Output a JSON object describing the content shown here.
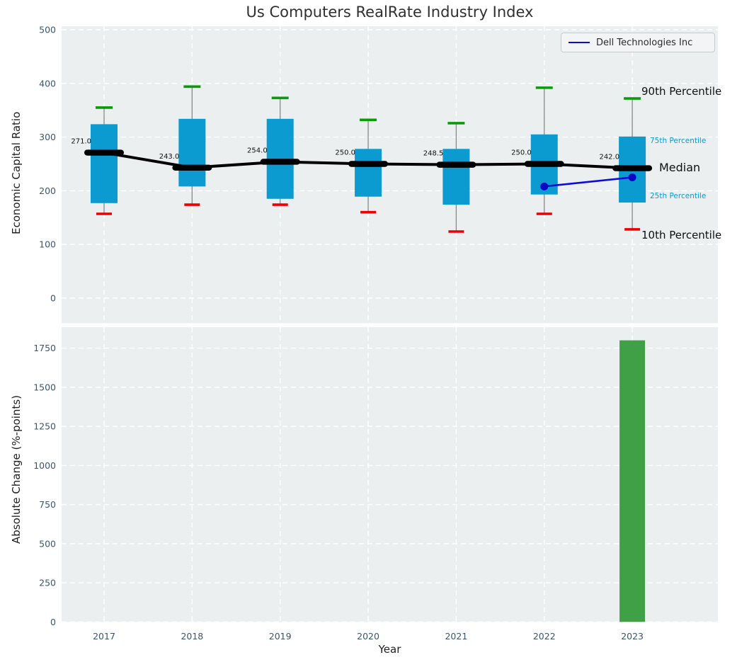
{
  "title": "Us Computers RealRate Industry Index",
  "legend": {
    "label": "Dell Technologies Inc",
    "line_color": "#0b0bdb"
  },
  "annotations": {
    "p90": "90th Percentile",
    "p75": "75th Percentile",
    "median": "Median",
    "p25": "25th Percentile",
    "p10": "10th Percentile"
  },
  "colors": {
    "plot_bg": "#ebeff0",
    "grid": "#ffffff",
    "box_fill": "#0b9bd0",
    "cap_90": "#0a9b0a",
    "cap_10": "#ee0000",
    "whisker": "#888888",
    "median_line": "#000000",
    "dell_line": "#0b0bdb",
    "bar_fill": "#3fa046",
    "tick_label": "#3a556d"
  },
  "chart_data": [
    {
      "type": "box-whisker-timeseries",
      "title": "Us Computers RealRate Industry Index",
      "ylabel": "Economic Capital Ratio",
      "categories": [
        "2017",
        "2018",
        "2019",
        "2020",
        "2021",
        "2022",
        "2023"
      ],
      "ylim": [
        -46,
        507
      ],
      "yticks": [
        0,
        100,
        200,
        300,
        400,
        500
      ],
      "grid": true,
      "legend_position": "upper right",
      "series": [
        {
          "name": "90th Percentile",
          "values": [
            355,
            394,
            373,
            332,
            326,
            392,
            372
          ]
        },
        {
          "name": "75th Percentile",
          "values": [
            324,
            334,
            334,
            278,
            278,
            305,
            301
          ]
        },
        {
          "name": "Median",
          "values": [
            271.0,
            243.0,
            254.0,
            250.0,
            248.5,
            250.0,
            242.0
          ]
        },
        {
          "name": "25th Percentile",
          "values": [
            177,
            208,
            185,
            189,
            174,
            193,
            178
          ]
        },
        {
          "name": "10th Percentile",
          "values": [
            157,
            174,
            174,
            160,
            124,
            157,
            128
          ]
        },
        {
          "name": "Dell Technologies Inc",
          "x": [
            "2022",
            "2023"
          ],
          "values": [
            208,
            225
          ]
        }
      ],
      "median_labels": [
        "271.0",
        "243.0",
        "254.0",
        "250.0",
        "248.5",
        "250.0",
        "242.0"
      ]
    },
    {
      "type": "bar",
      "ylabel": "Absolute Change (%-points)",
      "xlabel": "Year",
      "categories": [
        "2017",
        "2018",
        "2019",
        "2020",
        "2021",
        "2022",
        "2023"
      ],
      "values": [
        0,
        0,
        0,
        0,
        0,
        0,
        1800
      ],
      "ylim": [
        0,
        1890
      ],
      "yticks": [
        0,
        250,
        500,
        750,
        1000,
        1250,
        1500,
        1750
      ],
      "grid": true
    }
  ]
}
